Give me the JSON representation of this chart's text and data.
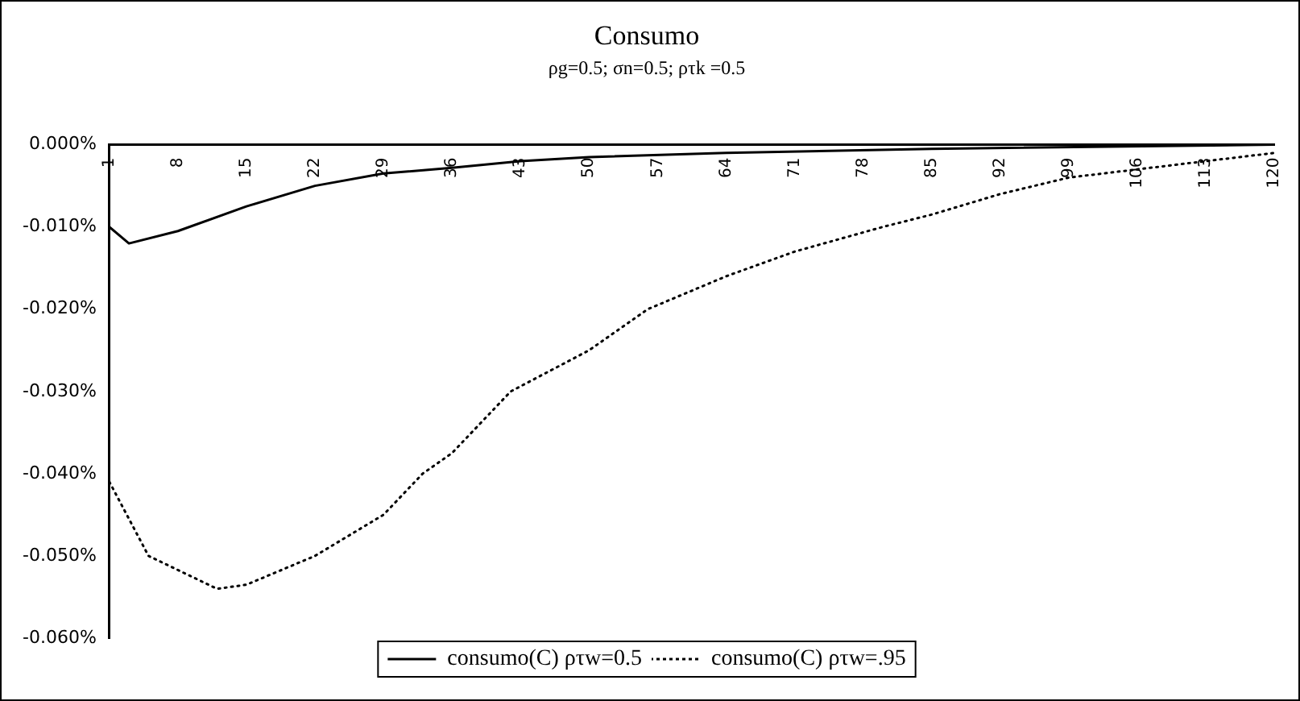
{
  "chart_data": {
    "type": "line",
    "title": "Consumo",
    "subtitle": "ρg=0.5; σn=0.5; ρτk =0.5",
    "xlim": [
      1,
      120
    ],
    "xticks": [
      1,
      8,
      15,
      22,
      29,
      36,
      43,
      50,
      57,
      64,
      71,
      78,
      85,
      92,
      99,
      106,
      113,
      120
    ],
    "ylim": [
      -0.06,
      0
    ],
    "yticks": [
      {
        "value": 0,
        "label": "0.000%"
      },
      {
        "value": -0.01,
        "label": "-0.010%"
      },
      {
        "value": -0.02,
        "label": "-0.020%"
      },
      {
        "value": -0.03,
        "label": "-0.030%"
      },
      {
        "value": -0.04,
        "label": "-0.040%"
      },
      {
        "value": -0.05,
        "label": "-0.050%"
      },
      {
        "value": -0.06,
        "label": "-0.060%"
      }
    ],
    "grid": false,
    "legend": "bottom",
    "marker": "none",
    "series": [
      {
        "name": "consumo(C) ρτw=0.5",
        "color": "#000000",
        "line_style": "solid",
        "x": [
          1,
          3,
          8,
          15,
          22,
          29,
          36,
          43,
          50,
          64,
          85,
          120
        ],
        "values": [
          -0.01,
          -0.012,
          -0.0105,
          -0.0075,
          -0.005,
          -0.0035,
          -0.0028,
          -0.002,
          -0.0015,
          -0.001,
          -0.0005,
          0
        ]
      },
      {
        "name": "consumo(C) ρτw=.95",
        "color": "#000000",
        "line_style": "dotted",
        "x": [
          1,
          5,
          12,
          15,
          22,
          29,
          33,
          36,
          42,
          50,
          56,
          64,
          71,
          80,
          85,
          92,
          99,
          106,
          113,
          120
        ],
        "values": [
          -0.041,
          -0.05,
          -0.054,
          -0.0535,
          -0.05,
          -0.045,
          -0.04,
          -0.0375,
          -0.03,
          -0.025,
          -0.02,
          -0.016,
          -0.013,
          -0.01,
          -0.0085,
          -0.006,
          -0.004,
          -0.003,
          -0.002,
          -0.001
        ]
      }
    ]
  }
}
